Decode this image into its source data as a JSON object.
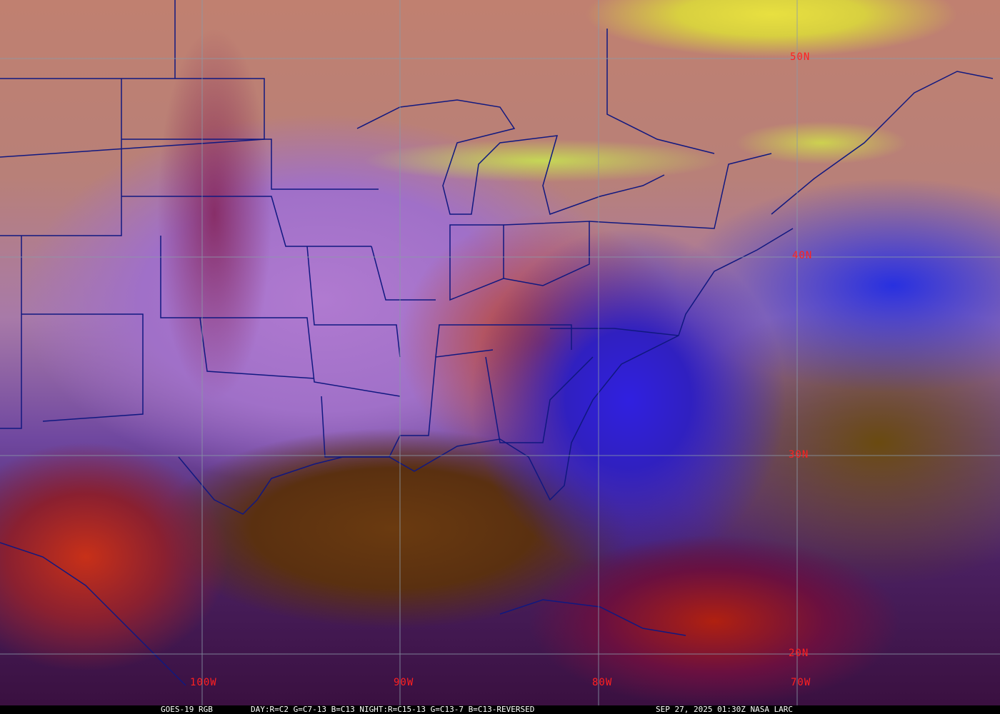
{
  "map": {
    "latitude_labels": [
      "50N",
      "40N",
      "30N",
      "20N"
    ],
    "longitude_labels": [
      "100W",
      "90W",
      "80W",
      "70W"
    ],
    "label_color": "#ff2020",
    "grid_color": "#8a9aa8",
    "boundary_color": "#101880"
  },
  "caption": {
    "product": "GOES-19 RGB",
    "recipe": "DAY:R=C2 G=C7-13 B=C13 NIGHT:R=C15-13 G=C13-7 B=C13-REVERSED",
    "timestamp": "SEP 27, 2025 01:30Z NASA LARC"
  }
}
